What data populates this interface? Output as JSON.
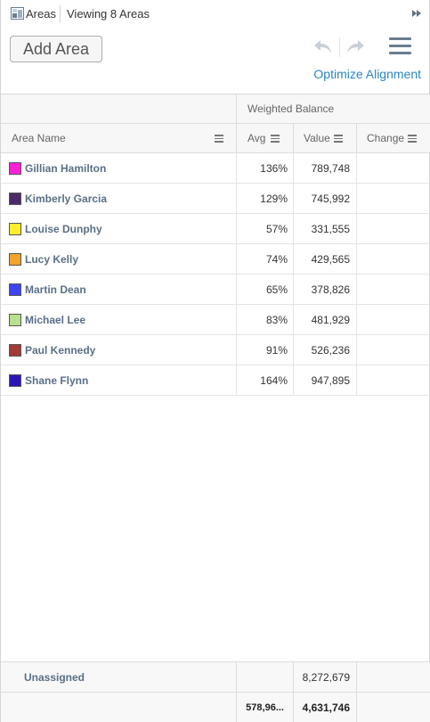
{
  "header": {
    "app_title": "Areas",
    "view_count": "Viewing 8 Areas"
  },
  "toolbar": {
    "add_label": "Add Area",
    "optimize_label": "Optimize Alignment"
  },
  "grid": {
    "group_header": "Weighted Balance",
    "columns": {
      "name": "Area Name",
      "avg": "Avg",
      "value": "Value",
      "change": "Change"
    },
    "rows": [
      {
        "name": "Gillian Hamilton",
        "color": "#ff1fd6",
        "avg": "136%",
        "value": "789,748",
        "change": ""
      },
      {
        "name": "Kimberly Garcia",
        "color": "#4b2a6b",
        "avg": "129%",
        "value": "745,992",
        "change": ""
      },
      {
        "name": "Louise Dunphy",
        "color": "#ffee2a",
        "avg": "57%",
        "value": "331,555",
        "change": ""
      },
      {
        "name": "Lucy Kelly",
        "color": "#f4a32a",
        "avg": "74%",
        "value": "429,565",
        "change": ""
      },
      {
        "name": "Martin Dean",
        "color": "#3e44f0",
        "avg": "65%",
        "value": "378,826",
        "change": ""
      },
      {
        "name": "Michael Lee",
        "color": "#b9e08a",
        "avg": "83%",
        "value": "481,929",
        "change": ""
      },
      {
        "name": "Paul Kennedy",
        "color": "#a33a35",
        "avg": "91%",
        "value": "526,236",
        "change": ""
      },
      {
        "name": "Shane Flynn",
        "color": "#2a16b8",
        "avg": "164%",
        "value": "947,895",
        "change": ""
      }
    ],
    "unassigned": {
      "label": "Unassigned",
      "avg": "",
      "value": "8,272,679",
      "change": ""
    },
    "totals": {
      "avg": "578,96...",
      "value": "4,631,746",
      "change": ""
    }
  }
}
